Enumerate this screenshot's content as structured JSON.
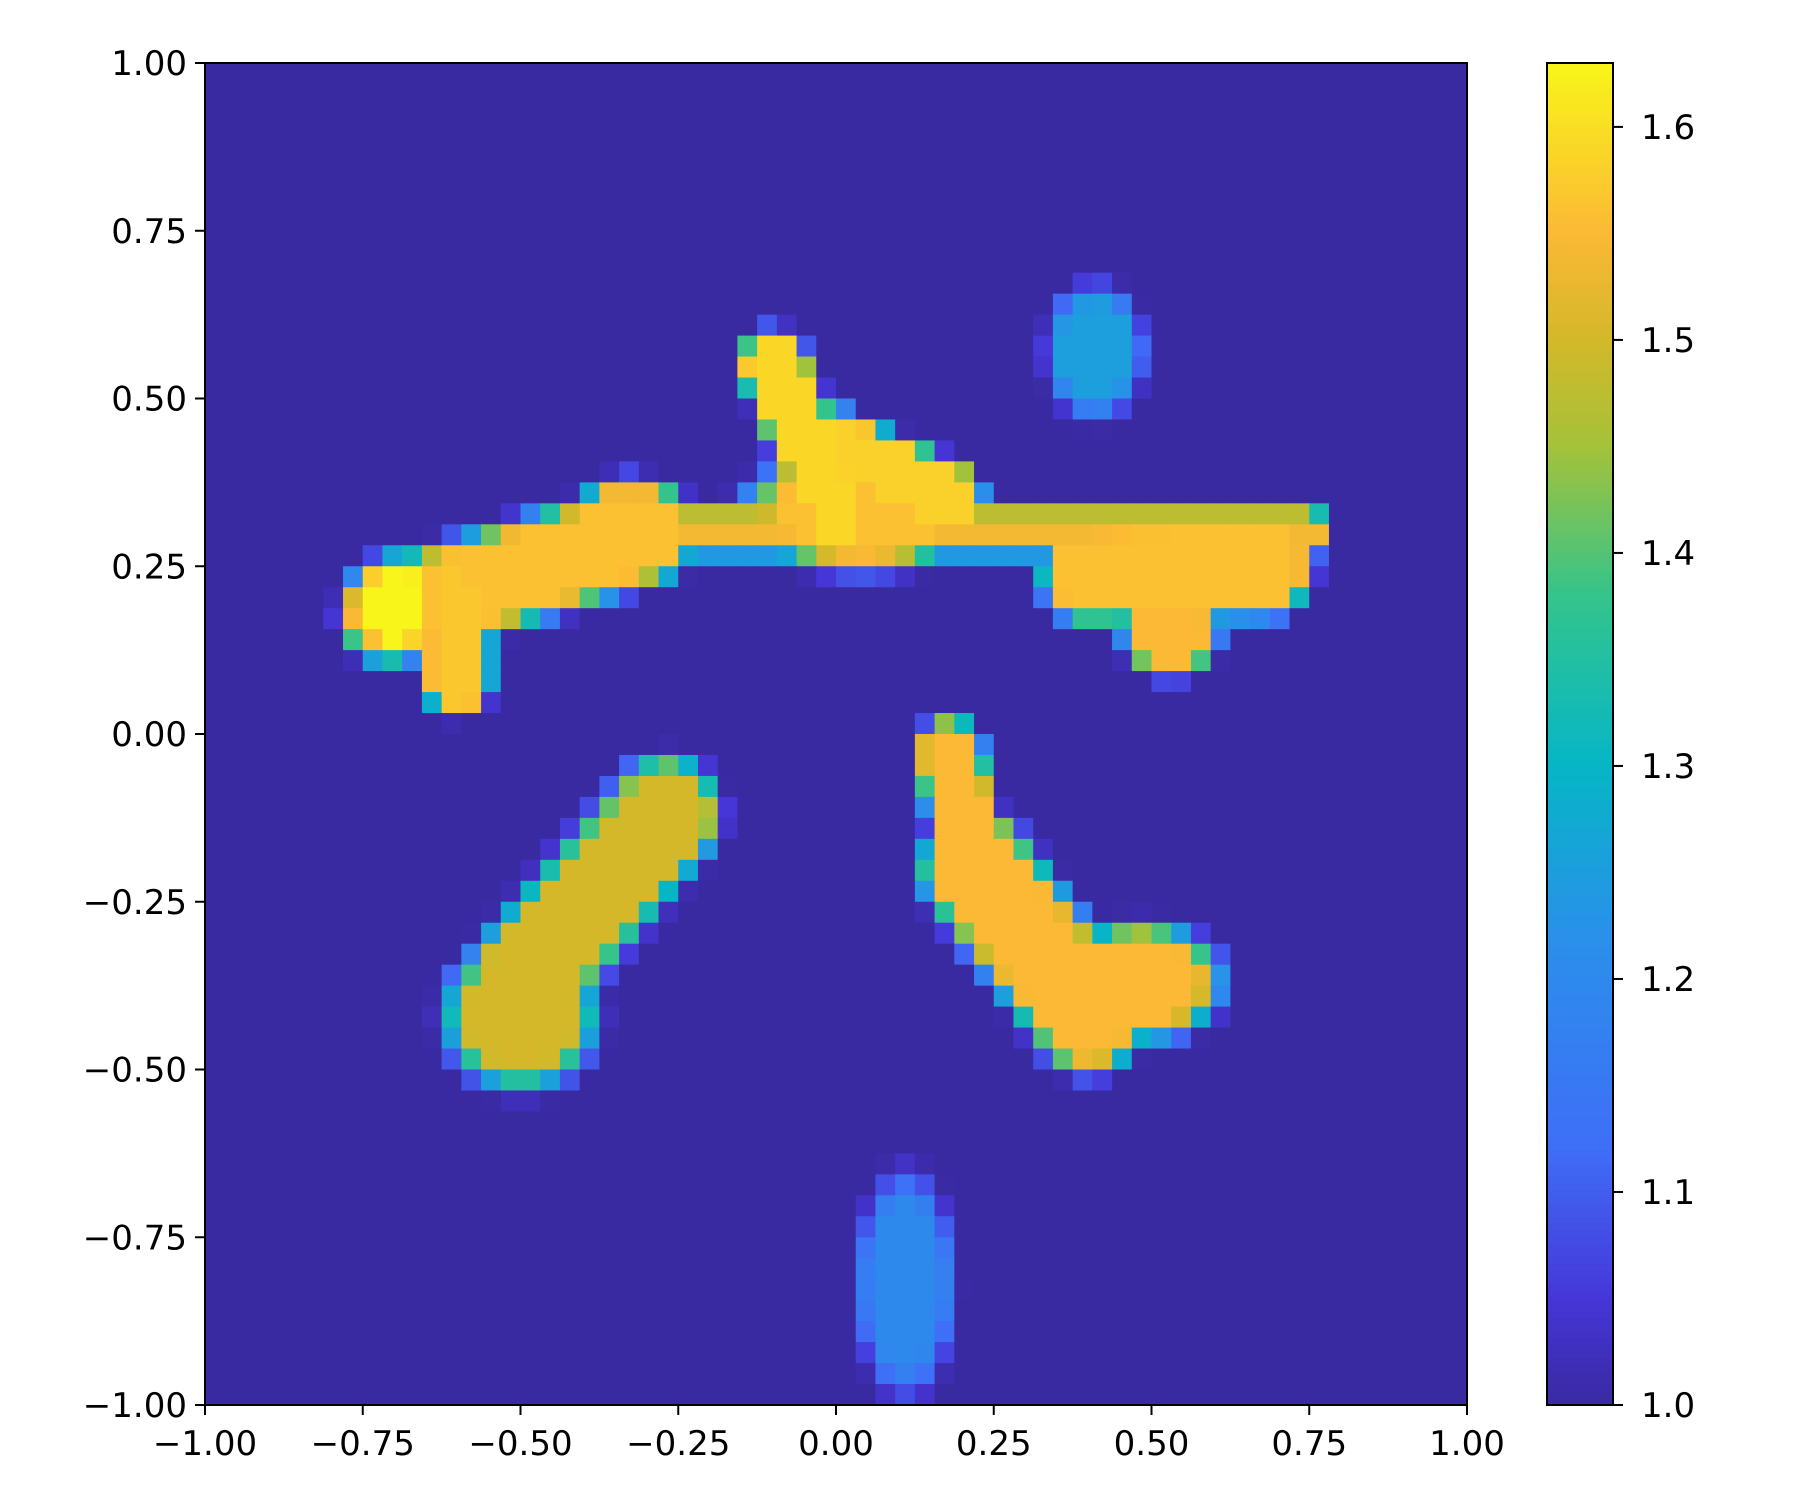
{
  "chart_data": {
    "type": "heatmap",
    "title": "",
    "xlabel": "",
    "ylabel": "",
    "xlim": [
      -1.0,
      1.0
    ],
    "ylim": [
      -1.0,
      1.0
    ],
    "grid": false,
    "x_ticks": [
      -1.0,
      -0.75,
      -0.5,
      -0.25,
      0.0,
      0.25,
      0.5,
      0.75,
      1.0
    ],
    "x_tick_labels": [
      "−1.00",
      "−0.75",
      "−0.50",
      "−0.25",
      "0.00",
      "0.25",
      "0.50",
      "0.75",
      "1.00"
    ],
    "y_ticks": [
      1.0,
      0.75,
      0.5,
      0.25,
      0.0,
      -0.25,
      -0.5,
      -0.75,
      -1.0
    ],
    "y_tick_labels": [
      "1.00",
      "0.75",
      "0.50",
      "0.25",
      "0.00",
      "−0.25",
      "−0.50",
      "−0.75",
      "−1.00"
    ],
    "grid_size": [
      64,
      64
    ],
    "background_value": 1.0,
    "colormap": {
      "name": "plasma-like (blue-green-yellow)",
      "stops": [
        {
          "value": 1.0,
          "color": "#3a2aa2"
        },
        {
          "value": 1.05,
          "color": "#4636d8"
        },
        {
          "value": 1.12,
          "color": "#3f6ef7"
        },
        {
          "value": 1.22,
          "color": "#2a90ea"
        },
        {
          "value": 1.3,
          "color": "#06b6c6"
        },
        {
          "value": 1.38,
          "color": "#34c48c"
        },
        {
          "value": 1.45,
          "color": "#a4c23a"
        },
        {
          "value": 1.5,
          "color": "#d4b82a"
        },
        {
          "value": 1.55,
          "color": "#fbb935"
        },
        {
          "value": 1.63,
          "color": "#f8f51a"
        }
      ]
    },
    "colorbar": {
      "range": [
        1.0,
        1.63
      ],
      "ticks": [
        1.0,
        1.1,
        1.2,
        1.3,
        1.4,
        1.5,
        1.6
      ],
      "tick_labels": [
        "1.0",
        "1.1",
        "1.2",
        "1.3",
        "1.4",
        "1.5",
        "1.6"
      ]
    },
    "regions": [
      {
        "kind": "capsule",
        "x1": -0.71,
        "y1": 0.18,
        "x2": -0.3,
        "y2": 0.3,
        "r": 0.07,
        "value": 1.56
      },
      {
        "kind": "ellipse",
        "x": -0.7,
        "y": 0.19,
        "rx": 0.06,
        "ry": 0.07,
        "value": 1.63
      },
      {
        "kind": "capsule",
        "x1": -0.6,
        "y1": 0.2,
        "x2": -0.6,
        "y2": 0.08,
        "r": 0.05,
        "value": 1.57
      },
      {
        "kind": "ellipse",
        "x": -0.33,
        "y": 0.33,
        "rx": 0.07,
        "ry": 0.05,
        "value": 1.54
      },
      {
        "kind": "capsule",
        "x1": -0.3,
        "y1": 0.3,
        "x2": 0.75,
        "y2": 0.3,
        "r": 0.032,
        "value": 1.54
      },
      {
        "kind": "capsule",
        "x1": -0.1,
        "y1": 0.55,
        "x2": 0.0,
        "y2": 0.33,
        "r": 0.05,
        "value": 1.59
      },
      {
        "kind": "ellipse",
        "x": 0.04,
        "y": 0.33,
        "rx": 0.17,
        "ry": 0.08,
        "value": 1.56
      },
      {
        "kind": "capsule",
        "x1": 0.0,
        "y1": 0.43,
        "x2": 0.18,
        "y2": 0.35,
        "r": 0.05,
        "value": 1.58
      },
      {
        "kind": "capsule",
        "x1": 0.4,
        "y1": 0.24,
        "x2": 0.68,
        "y2": 0.25,
        "r": 0.07,
        "value": 1.56
      },
      {
        "kind": "ellipse",
        "x": 0.53,
        "y": 0.15,
        "rx": 0.07,
        "ry": 0.06,
        "value": 1.55
      },
      {
        "kind": "capsule",
        "x1": -0.27,
        "y1": -0.12,
        "x2": -0.5,
        "y2": -0.37,
        "r": 0.08,
        "value": 1.5
      },
      {
        "kind": "ellipse",
        "x": -0.5,
        "y": -0.42,
        "rx": 0.11,
        "ry": 0.1,
        "value": 1.5
      },
      {
        "kind": "capsule",
        "x1": 0.18,
        "y1": -0.03,
        "x2": 0.22,
        "y2": -0.22,
        "r": 0.05,
        "value": 1.55
      },
      {
        "kind": "capsule",
        "x1": 0.22,
        "y1": -0.2,
        "x2": 0.4,
        "y2": -0.42,
        "r": 0.08,
        "value": 1.55
      },
      {
        "kind": "ellipse",
        "x": 0.48,
        "y": -0.37,
        "rx": 0.12,
        "ry": 0.08,
        "value": 1.55
      },
      {
        "kind": "ellipse",
        "x": 0.41,
        "y": 0.57,
        "rx": 0.07,
        "ry": 0.09,
        "value": 1.25
      },
      {
        "kind": "ellipse",
        "x": 0.11,
        "y": -0.82,
        "rx": 0.07,
        "ry": 0.15,
        "value": 1.2
      }
    ]
  }
}
